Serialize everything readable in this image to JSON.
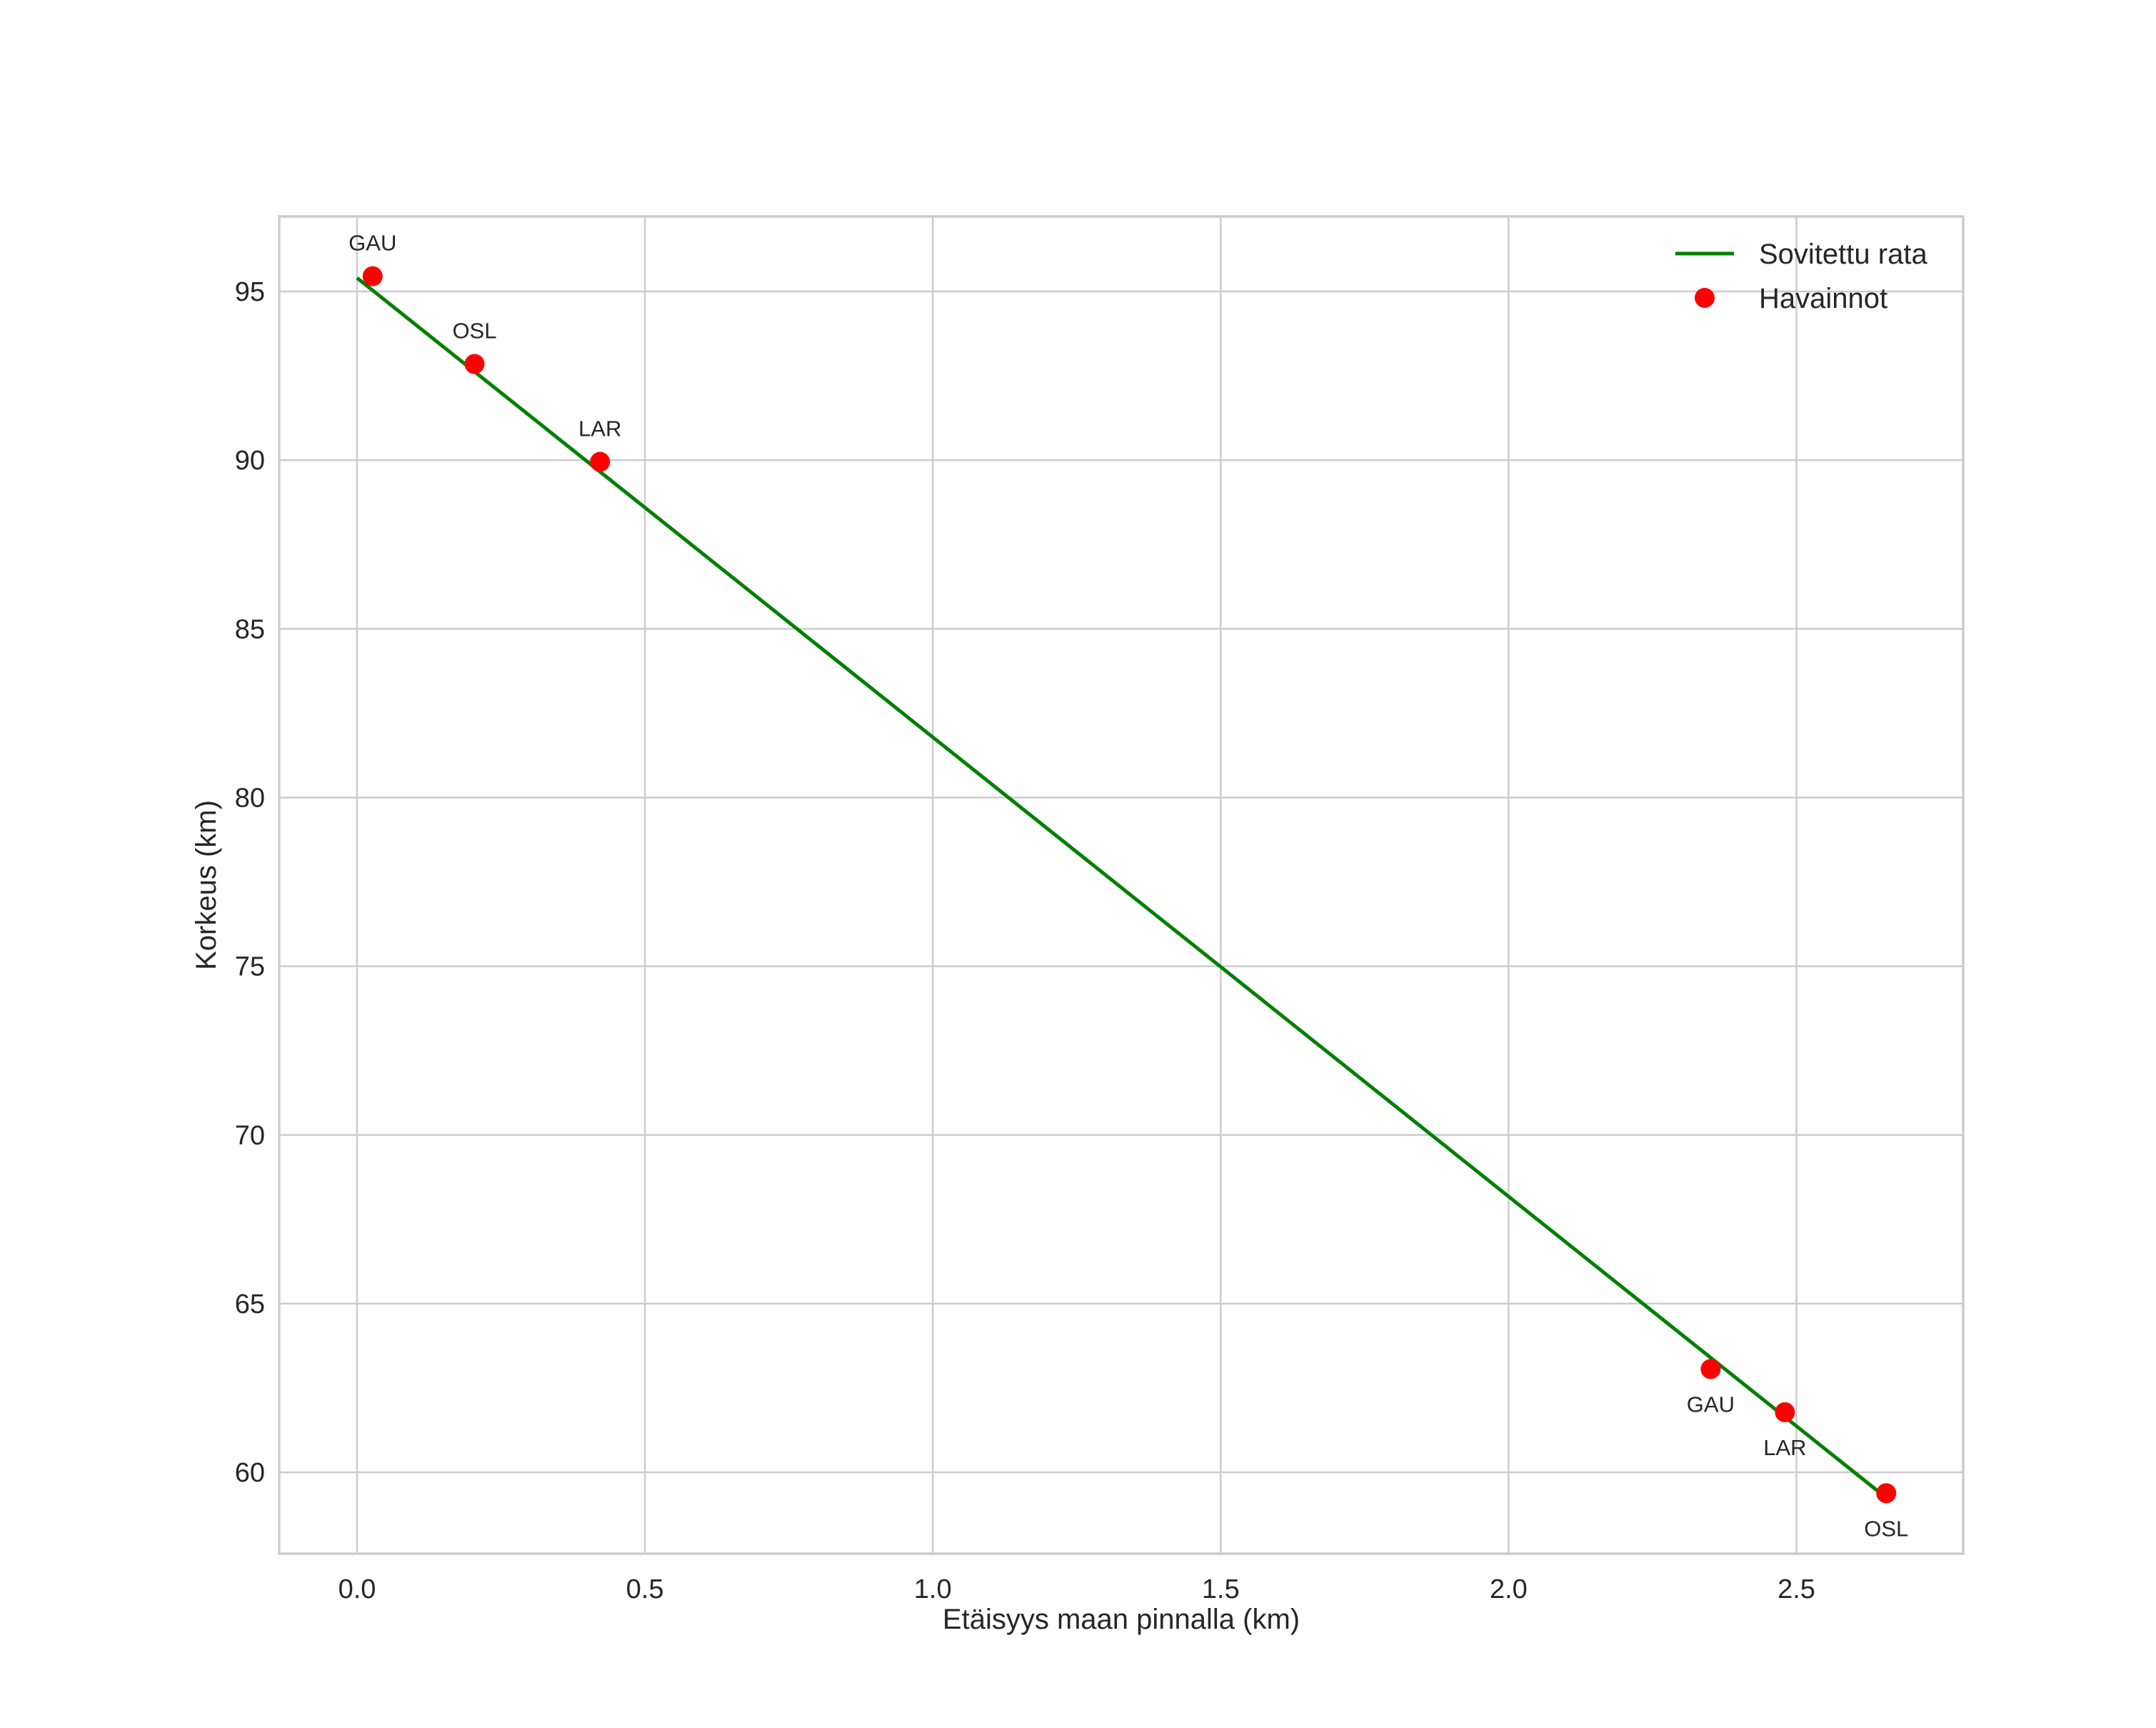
{
  "chart_data": {
    "type": "line",
    "title": "",
    "xlabel": "Etäisyys maan pinnalla (km)",
    "ylabel": "Korkeus (km)",
    "xlim": [
      -0.135,
      2.79
    ],
    "ylim": [
      57.6,
      97.2
    ],
    "xticks": [
      0.0,
      0.5,
      1.0,
      1.5,
      2.0,
      2.5
    ],
    "xtick_labels": [
      "0.0",
      "0.5",
      "1.0",
      "1.5",
      "2.0",
      "2.5"
    ],
    "yticks": [
      60,
      65,
      70,
      75,
      80,
      85,
      90,
      95
    ],
    "ytick_labels": [
      "60",
      "65",
      "70",
      "75",
      "80",
      "85",
      "90",
      "95"
    ],
    "grid": true,
    "legend_position": "upper right",
    "series": [
      {
        "name": "Sovitettu rata",
        "kind": "line",
        "color": "#008000",
        "x": [
          0.0,
          2.652
        ],
        "y": [
          95.4,
          59.3
        ]
      },
      {
        "name": "Havainnot",
        "kind": "scatter",
        "color": "#ff0000",
        "points": [
          {
            "label": "GAU",
            "x": 0.027,
            "y": 95.45,
            "label_pos": "above"
          },
          {
            "label": "OSL",
            "x": 0.204,
            "y": 92.85,
            "label_pos": "above"
          },
          {
            "label": "LAR",
            "x": 0.422,
            "y": 89.95,
            "label_pos": "above"
          },
          {
            "label": "GAU",
            "x": 2.351,
            "y": 63.06,
            "label_pos": "below"
          },
          {
            "label": "LAR",
            "x": 2.48,
            "y": 61.78,
            "label_pos": "below"
          },
          {
            "label": "OSL",
            "x": 2.656,
            "y": 59.38,
            "label_pos": "below"
          }
        ]
      }
    ]
  },
  "legend": {
    "items": [
      {
        "label": "Sovitettu rata",
        "symbol": "line",
        "color": "#008000"
      },
      {
        "label": "Havainnot",
        "symbol": "dot",
        "color": "#ff0000"
      }
    ]
  },
  "colors": {
    "grid": "#cccccc",
    "text": "#262626",
    "fit_line": "#008000",
    "observations": "#ff0000"
  }
}
